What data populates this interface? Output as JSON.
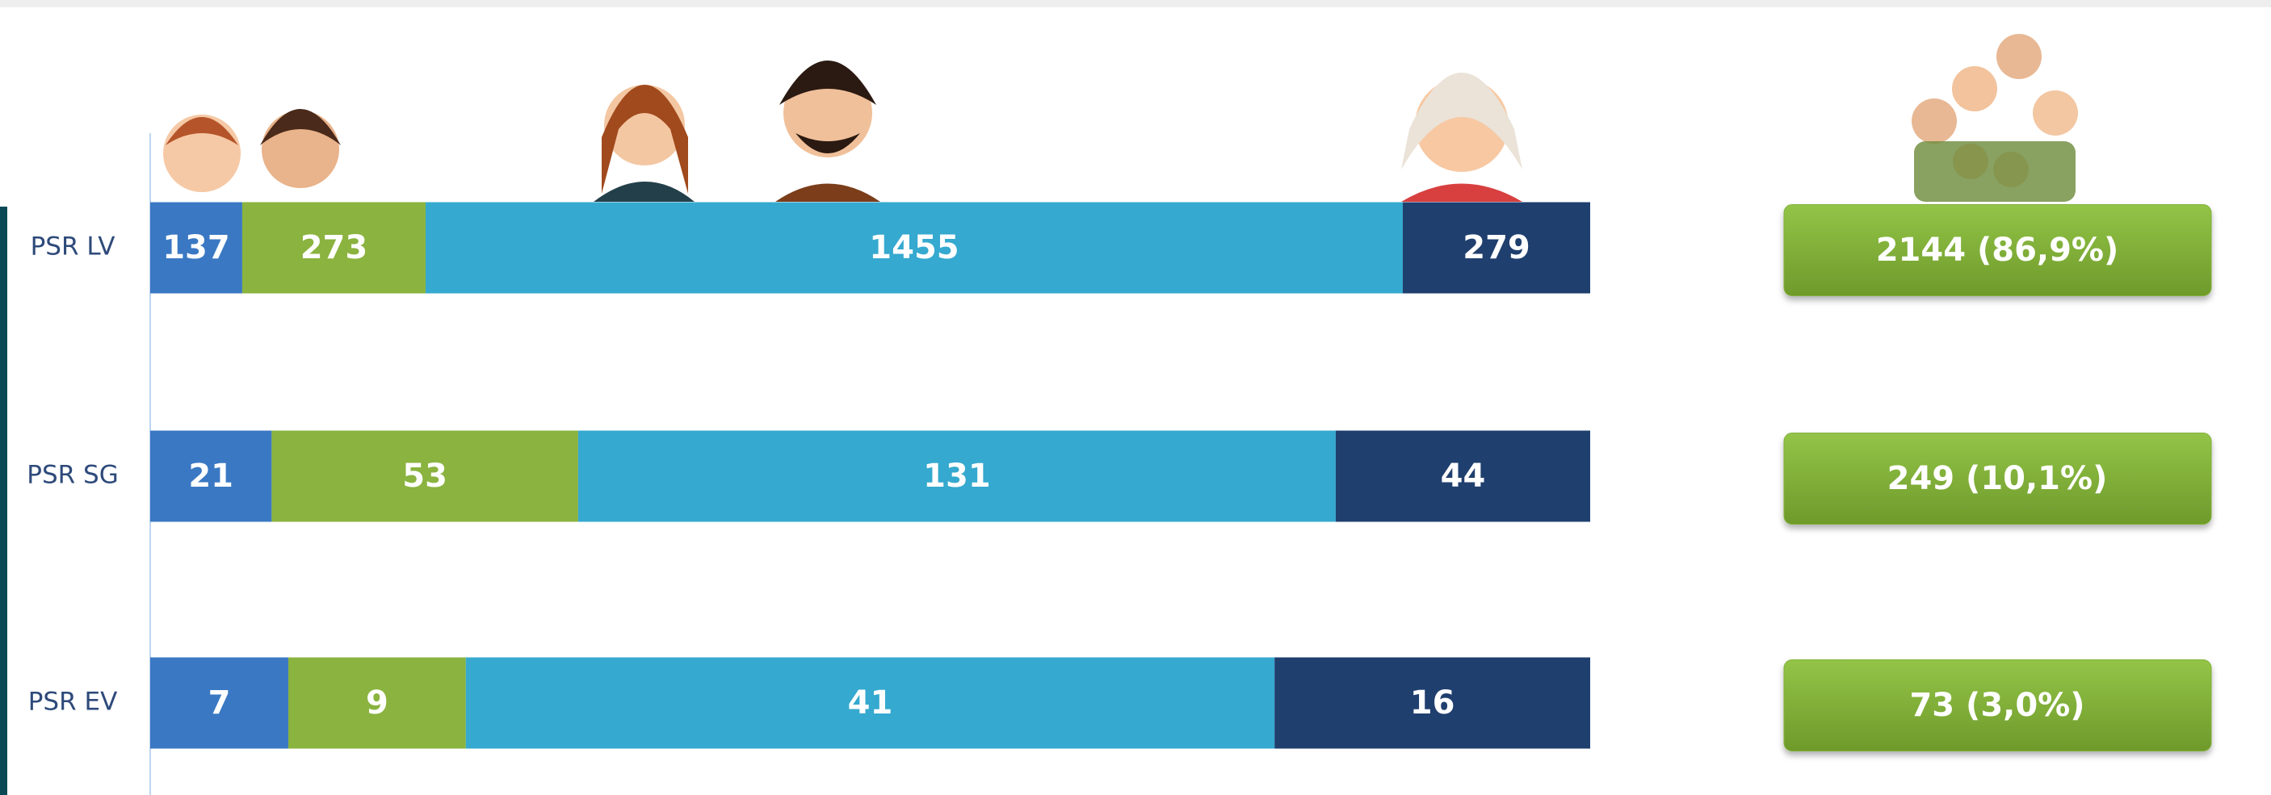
{
  "chart_data": {
    "type": "bar",
    "orientation": "horizontal",
    "stack": "percent",
    "categories": [
      "PSR LV",
      "PSR SG",
      "PSR EV"
    ],
    "series": [
      {
        "color": "#3a78c3",
        "values": [
          137,
          21,
          7
        ]
      },
      {
        "color": "#8ab33f",
        "values": [
          273,
          53,
          9
        ]
      },
      {
        "color": "#35a9cf",
        "values": [
          1455,
          131,
          41
        ]
      },
      {
        "color": "#1f3f6e",
        "values": [
          279,
          44,
          16
        ]
      }
    ],
    "totals": {
      "color": "#82b23a",
      "values": [
        2144,
        249,
        73
      ],
      "value_labels": [
        "2144 (86,9%)",
        "249 (10,1%)",
        "73 (3,0%)"
      ]
    }
  }
}
